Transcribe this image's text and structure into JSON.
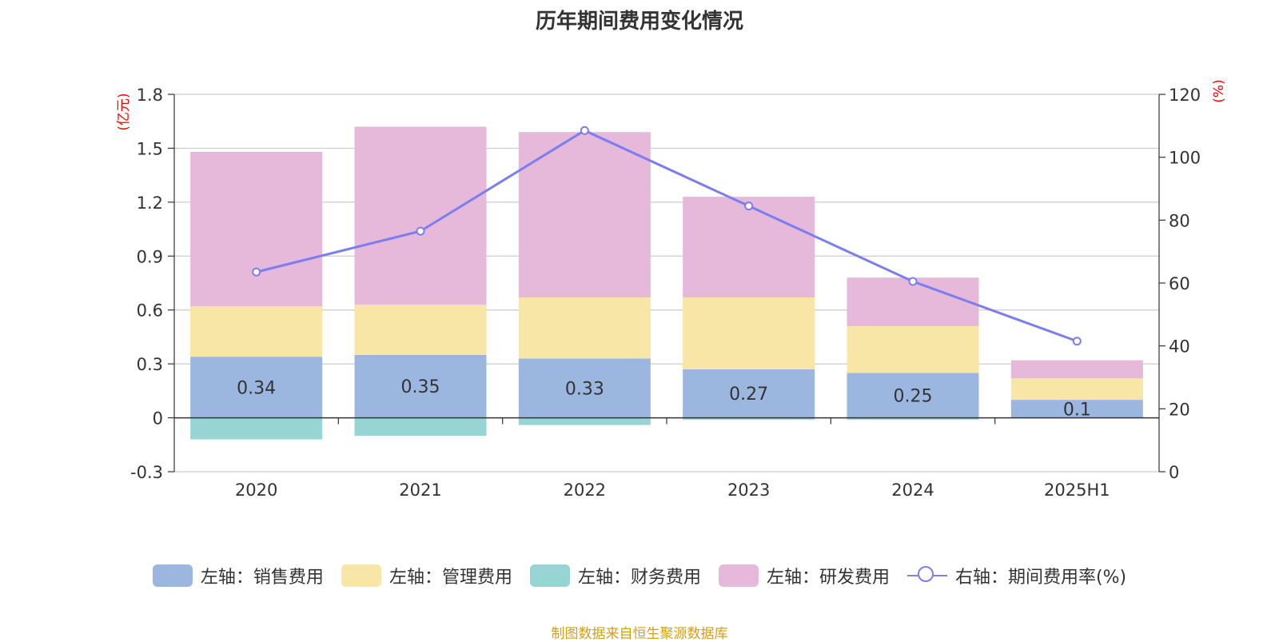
{
  "title": "历年期间费用变化情况",
  "source_note": "制图数据来自恒生聚源数据库",
  "colors": {
    "sales": "#9bb7e0",
    "admin": "#f8e6a6",
    "finance": "#96d5d4",
    "rd": "#e6b8da",
    "rate_line": "#7b7ef0",
    "axis_unit": "#ff0000",
    "grid": "#cccccc",
    "text": "#333333"
  },
  "chart_data": {
    "type": "bar",
    "title": "历年期间费用变化情况",
    "categories": [
      "2020",
      "2021",
      "2022",
      "2023",
      "2024",
      "2025H1"
    ],
    "left_axis": {
      "unit": "(亿元)",
      "ylim": [
        -0.3,
        1.8
      ],
      "ticks": [
        "-0.3",
        "0",
        "0.3",
        "0.6",
        "0.9",
        "1.2",
        "1.5",
        "1.8"
      ]
    },
    "right_axis": {
      "unit": "(%)",
      "ylim": [
        0,
        120
      ],
      "ticks": [
        "0",
        "20",
        "40",
        "60",
        "80",
        "100",
        "120"
      ]
    },
    "series": [
      {
        "name": "左轴：销售费用",
        "key": "sales",
        "axis": "left",
        "kind": "bar",
        "values": [
          0.34,
          0.35,
          0.33,
          0.27,
          0.25,
          0.1
        ],
        "labels": [
          "0.34",
          "0.35",
          "0.33",
          "0.27",
          "0.25",
          "0.1"
        ]
      },
      {
        "name": "左轴：管理费用",
        "key": "admin",
        "axis": "left",
        "kind": "bar",
        "values": [
          0.28,
          0.28,
          0.34,
          0.4,
          0.26,
          0.12
        ]
      },
      {
        "name": "左轴：财务费用",
        "key": "finance",
        "axis": "left",
        "kind": "bar",
        "values": [
          -0.12,
          -0.1,
          -0.04,
          -0.01,
          -0.01,
          0.0
        ]
      },
      {
        "name": "左轴：研发费用",
        "key": "rd",
        "axis": "left",
        "kind": "bar",
        "values": [
          0.86,
          0.99,
          0.92,
          0.56,
          0.27,
          0.1
        ]
      },
      {
        "name": "右轴：期间费用率(%)",
        "key": "rate_line",
        "axis": "right",
        "kind": "line",
        "values": [
          63.5,
          76.5,
          108.5,
          84.5,
          60.5,
          41.5
        ]
      }
    ],
    "grid": true,
    "legend_position": "bottom"
  }
}
